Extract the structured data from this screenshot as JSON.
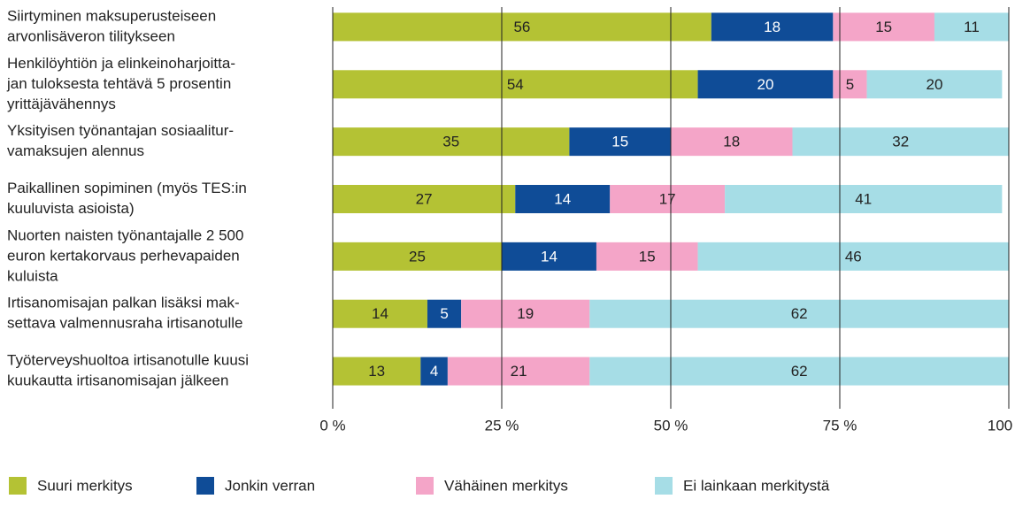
{
  "chart_data": {
    "type": "stacked-bar-horizontal",
    "categories": [
      [
        "Siirtyminen maksuperusteiseen",
        "arvonlisäveron tilitykseen"
      ],
      [
        "Henkilöyhtiön ja elinkeinoharjoitta-",
        "jan tuloksesta tehtävä 5 prosentin",
        "yrittäjävähennys"
      ],
      [
        "Yksityisen työnantajan sosiaalitur-",
        "vamaksujen alennus"
      ],
      [
        "Paikallinen sopiminen (myös TES:in",
        "kuuluvista asioista)"
      ],
      [
        "Nuorten naisten työnantajalle 2 500",
        "euron kertakorvaus perhevapaiden",
        "kuluista"
      ],
      [
        "Irtisanomisajan palkan lisäksi mak-",
        "settava valmennusraha irtisanotulle"
      ],
      [
        "Työterveyshuoltoa irtisanotulle kuusi",
        "kuukautta irtisanomisajan jälkeen"
      ]
    ],
    "series": [
      {
        "name": "Suuri merkitys",
        "color": "#b4c234",
        "values": [
          56,
          54,
          35,
          27,
          25,
          14,
          13
        ]
      },
      {
        "name": "Jonkin verran",
        "color": "#0f4c97",
        "values": [
          18,
          20,
          15,
          14,
          14,
          5,
          4
        ]
      },
      {
        "name": "Vähäinen merkitys",
        "color": "#f4a5c8",
        "values": [
          15,
          5,
          18,
          17,
          15,
          19,
          21
        ]
      },
      {
        "name": "Ei lainkaan merkitystä",
        "color": "#a6dde6",
        "values": [
          11,
          20,
          32,
          41,
          46,
          62,
          62
        ]
      }
    ],
    "xlim": [
      0,
      100
    ],
    "xticks": [
      {
        "value": 0,
        "label": "0 %"
      },
      {
        "value": 25,
        "label": "25 %"
      },
      {
        "value": 50,
        "label": "50 %"
      },
      {
        "value": 75,
        "label": "75 %"
      },
      {
        "value": 100,
        "label": "100 %"
      }
    ],
    "grid": true,
    "legend": "bottom"
  }
}
